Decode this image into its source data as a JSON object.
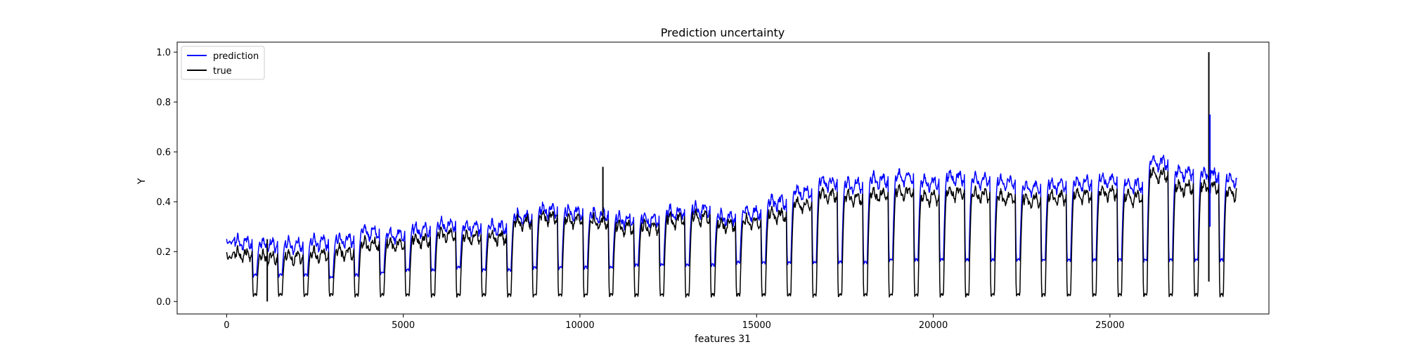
{
  "chart_data": {
    "type": "line",
    "title": "Prediction uncertainty",
    "xlabel": "features 31",
    "ylabel": "Y",
    "xlim": [
      -1400,
      29500
    ],
    "ylim": [
      -0.05,
      1.04
    ],
    "xticks": [
      0,
      5000,
      10000,
      15000,
      20000,
      25000
    ],
    "yticks": [
      0.0,
      0.2,
      0.4,
      0.6,
      0.8,
      1.0
    ],
    "ytick_labels": [
      "0.0",
      "0.2",
      "0.4",
      "0.6",
      "0.8",
      "1.0"
    ],
    "grid": false,
    "legend_position": "upper-left",
    "x_count": 28600,
    "cycle_period": 720,
    "series": [
      {
        "name": "prediction",
        "color": "#0000ff",
        "trough": [
          0.23,
          0.1,
          0.1,
          0.1,
          0.09,
          0.1,
          0.11,
          0.12,
          0.12,
          0.13,
          0.12,
          0.12,
          0.13,
          0.13,
          0.13,
          0.13,
          0.14,
          0.14,
          0.14,
          0.14,
          0.15,
          0.15,
          0.15,
          0.15,
          0.15,
          0.15,
          0.16,
          0.16,
          0.16,
          0.16,
          0.16,
          0.16,
          0.16,
          0.16,
          0.16,
          0.16,
          0.16,
          0.16,
          0.16,
          0.16
        ],
        "peak": [
          0.25,
          0.24,
          0.24,
          0.25,
          0.26,
          0.29,
          0.28,
          0.3,
          0.32,
          0.31,
          0.31,
          0.35,
          0.38,
          0.37,
          0.36,
          0.34,
          0.34,
          0.37,
          0.38,
          0.35,
          0.37,
          0.41,
          0.45,
          0.49,
          0.48,
          0.5,
          0.51,
          0.49,
          0.51,
          0.5,
          0.49,
          0.47,
          0.48,
          0.49,
          0.5,
          0.48,
          0.57,
          0.53,
          0.52,
          0.5
        ]
      },
      {
        "name": "true",
        "color": "#000000",
        "trough": [
          0.17,
          0.02,
          0.02,
          0.02,
          0.02,
          0.02,
          0.02,
          0.02,
          0.02,
          0.02,
          0.02,
          0.02,
          0.02,
          0.02,
          0.02,
          0.02,
          0.02,
          0.02,
          0.02,
          0.02,
          0.02,
          0.02,
          0.02,
          0.02,
          0.02,
          0.02,
          0.02,
          0.02,
          0.02,
          0.02,
          0.02,
          0.02,
          0.02,
          0.02,
          0.02,
          0.02,
          0.02,
          0.02,
          0.02,
          0.02
        ],
        "peak": [
          0.2,
          0.19,
          0.19,
          0.2,
          0.21,
          0.24,
          0.24,
          0.26,
          0.28,
          0.27,
          0.27,
          0.33,
          0.35,
          0.34,
          0.33,
          0.31,
          0.31,
          0.34,
          0.35,
          0.32,
          0.33,
          0.36,
          0.4,
          0.44,
          0.43,
          0.44,
          0.45,
          0.43,
          0.45,
          0.44,
          0.43,
          0.42,
          0.43,
          0.44,
          0.45,
          0.43,
          0.52,
          0.47,
          0.47,
          0.45
        ]
      }
    ],
    "spikes": [
      {
        "series": "true",
        "x": 1150,
        "y_min": 0.0,
        "y_max": 0.25
      },
      {
        "series": "true",
        "x": 10650,
        "y_min": 0.33,
        "y_max": 0.54
      },
      {
        "series": "true",
        "x": 27800,
        "y_min": 0.08,
        "y_max": 1.0
      },
      {
        "series": "prediction",
        "x": 27830,
        "y_min": 0.3,
        "y_max": 0.75
      }
    ]
  }
}
